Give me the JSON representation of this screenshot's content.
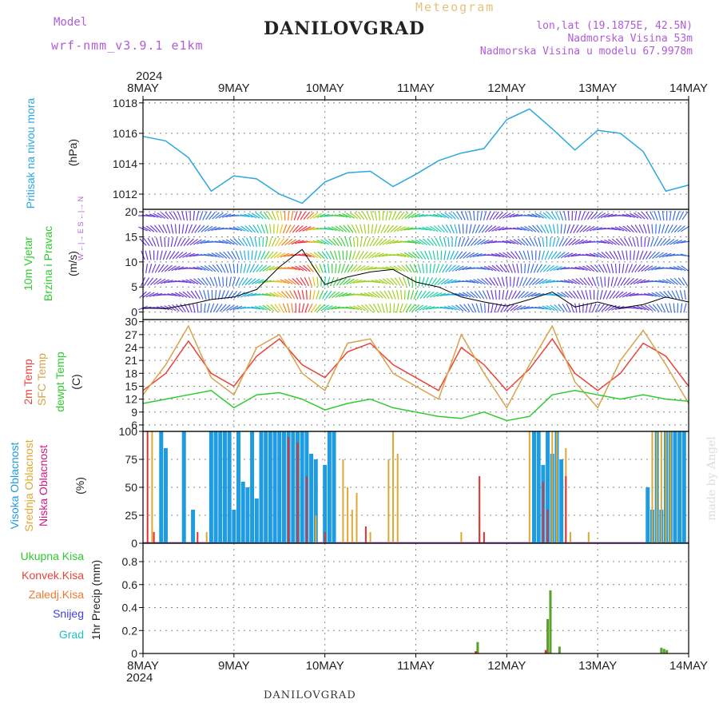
{
  "header": {
    "model_label": "Model",
    "model_name": "wrf-nmm_v3.9.1 e1km",
    "title": "DANILOVGRAD",
    "subtitle": "Meteogram",
    "lonlat": "lon,lat (19.1875E, 42.5N)",
    "elev": "Nadmorska Visina 53m",
    "elev_model": "Nadmorska Visina u modelu 67.9978m"
  },
  "footer": {
    "station": "DANILOVGRAD",
    "credit": "made by Angel"
  },
  "time_axis": {
    "year": "2024",
    "labels": [
      "8MAY",
      "9MAY",
      "10MAY",
      "11MAY",
      "12MAY",
      "13MAY",
      "14MAY"
    ]
  },
  "labels": {
    "pressure_name": "Pritisak na nivou mora",
    "pressure_unit": "(hPa)",
    "wind_name1": "10m Vjetar",
    "wind_name2": "Brzina i Pravac",
    "wind_unit": "(m/s)",
    "compass": "W ←|→ E  S ←|→ N",
    "temp2m": "2m Temp",
    "sfc": "SFC Temp",
    "dew": "dewpt Temp",
    "temp_unit": "(C)",
    "cloud_high": "Visoka Oblacnost",
    "cloud_mid": "Srednja Oblacnost",
    "cloud_low": "Niska Oblacnost",
    "cloud_unit": "(%)",
    "precip_axis": "1hr Precip (mm)",
    "precip_total": "Ukupna Kisa",
    "precip_conv": "Konvek.Kisa",
    "precip_frozen": "Zaledj.Kisa",
    "precip_snow": "Snijeg",
    "precip_hail": "Grad"
  },
  "colors": {
    "pressure": "#2aa8e0",
    "temp2m": "#e8443a",
    "sfc": "#d9a24a",
    "dew": "#2ecc2e",
    "cloud_high": "#1f9be0",
    "cloud_mid": "#e0a830",
    "cloud_low": "#e03030",
    "precip_total": "#5aa02c",
    "precip_conv": "#e03030",
    "precip_frozen": "#f07a30",
    "precip_snow": "#4040e0",
    "precip_hail": "#20c0c0",
    "violet": "#b05cd8"
  },
  "chart_data": [
    {
      "type": "line",
      "name": "pressure",
      "ylim": [
        1011,
        1018.2
      ],
      "yticks": [
        1012,
        1014,
        1016,
        1018
      ],
      "x": [
        0,
        0.25,
        0.5,
        0.75,
        1,
        1.25,
        1.5,
        1.75,
        2,
        2.25,
        2.5,
        2.75,
        3,
        3.25,
        3.5,
        3.75,
        4,
        4.25,
        4.5,
        4.75,
        5,
        5.25,
        5.5,
        5.75,
        6
      ],
      "values": [
        1015.8,
        1015.5,
        1014.4,
        1012.2,
        1013.2,
        1013.0,
        1012.0,
        1011.4,
        1012.8,
        1013.4,
        1013.5,
        1012.5,
        1013.3,
        1014.2,
        1014.7,
        1015.0,
        1016.9,
        1017.6,
        1016.3,
        1014.9,
        1016.2,
        1016.0,
        1014.8,
        1012.2,
        1012.6
      ]
    },
    {
      "type": "line",
      "name": "wind_speed",
      "ylim": [
        -1.5,
        20.5
      ],
      "yticks": [
        0,
        5,
        10,
        15,
        20
      ],
      "x": [
        0,
        0.25,
        0.5,
        0.75,
        1,
        1.25,
        1.5,
        1.75,
        2,
        2.25,
        2.5,
        2.75,
        3,
        3.25,
        3.5,
        3.75,
        4,
        4.25,
        4.5,
        4.75,
        5,
        5.25,
        5.5,
        5.75,
        6
      ],
      "values": [
        0.8,
        0.7,
        1.5,
        2.5,
        3.0,
        4.5,
        9.0,
        12.5,
        5.5,
        7.0,
        8.0,
        8.5,
        6.0,
        5.0,
        3.0,
        2.0,
        1.2,
        2.5,
        4.0,
        1.0,
        2.0,
        0.8,
        1.5,
        3.0,
        2.0
      ]
    },
    {
      "type": "line",
      "name": "temperature",
      "ylim": [
        4.5,
        30.5
      ],
      "yticks": [
        6,
        9,
        12,
        15,
        18,
        21,
        24,
        27,
        30
      ],
      "series": [
        {
          "name": "2m Temp",
          "x": [
            0,
            0.25,
            0.5,
            0.75,
            1,
            1.25,
            1.5,
            1.75,
            2,
            2.25,
            2.5,
            2.75,
            3,
            3.25,
            3.5,
            3.75,
            4,
            4.25,
            4.5,
            4.75,
            5,
            5.25,
            5.5,
            5.75,
            6
          ],
          "values": [
            14,
            18,
            25.5,
            18,
            15,
            22,
            26,
            20,
            17,
            23,
            25,
            20,
            17,
            14,
            24,
            20,
            14,
            19,
            26,
            18,
            14,
            18,
            25,
            22,
            15
          ]
        },
        {
          "name": "SFC Temp",
          "x": [
            0,
            0.25,
            0.5,
            0.75,
            1,
            1.25,
            1.5,
            1.75,
            2,
            2.25,
            2.5,
            2.75,
            3,
            3.25,
            3.5,
            3.75,
            4,
            4.25,
            4.5,
            4.75,
            5,
            5.25,
            5.5,
            5.75,
            6
          ],
          "values": [
            13,
            20,
            29,
            17,
            13,
            24,
            27,
            18,
            14,
            25,
            26,
            18,
            15,
            12,
            27,
            18,
            10,
            20,
            29,
            16,
            10,
            21,
            28,
            20,
            11
          ]
        },
        {
          "name": "dewpt Temp",
          "x": [
            0,
            0.25,
            0.5,
            0.75,
            1,
            1.25,
            1.5,
            1.75,
            2,
            2.25,
            2.5,
            2.75,
            3,
            3.25,
            3.5,
            3.75,
            4,
            4.25,
            4.5,
            4.75,
            5,
            5.25,
            5.5,
            5.75,
            6
          ],
          "values": [
            11,
            12,
            13,
            14,
            10,
            13,
            13.5,
            12,
            9.5,
            11,
            12,
            10,
            9,
            8,
            7.5,
            9,
            7,
            8,
            13,
            14,
            13,
            12,
            13,
            12,
            11.5
          ]
        }
      ]
    },
    {
      "type": "bar",
      "name": "cloud",
      "ylim": [
        0,
        100
      ],
      "yticks": [
        0,
        25,
        50,
        75,
        100
      ],
      "series": [
        {
          "name": "Visoka Oblacnost",
          "x": [
            0.2,
            0.25,
            0.45,
            0.55,
            0.75,
            0.8,
            0.85,
            0.9,
            0.95,
            1,
            1.05,
            1.1,
            1.15,
            1.2,
            1.25,
            1.3,
            1.35,
            1.4,
            1.45,
            1.5,
            1.55,
            1.6,
            1.65,
            1.7,
            1.75,
            1.8,
            1.85,
            1.9,
            2,
            2.05,
            2.1,
            4.3,
            4.35,
            4.4,
            4.45,
            4.5,
            4.55,
            4.6,
            5.55,
            5.6,
            5.65,
            5.7,
            5.75,
            5.8,
            5.85,
            5.9,
            5.95
          ],
          "values": [
            100,
            85,
            100,
            30,
            100,
            100,
            100,
            100,
            100,
            30,
            100,
            55,
            50,
            100,
            40,
            100,
            100,
            100,
            100,
            100,
            100,
            100,
            100,
            100,
            100,
            100,
            80,
            75,
            70,
            100,
            100,
            100,
            100,
            70,
            100,
            80,
            100,
            75,
            50,
            30,
            100,
            30,
            100,
            100,
            100,
            100,
            100
          ]
        },
        {
          "name": "Srednja Oblacnost",
          "x": [
            0.1,
            0.7,
            1.9,
            2.2,
            2.25,
            2.3,
            2.35,
            2.5,
            2.7,
            2.75,
            2.8,
            3.5,
            3.7,
            4.25,
            4.5,
            4.55,
            4.65,
            4.7,
            4.9,
            5.6,
            5.65,
            5.7,
            5.75,
            5.8
          ],
          "values": [
            100,
            10,
            25,
            75,
            50,
            30,
            45,
            10,
            75,
            100,
            80,
            10,
            25,
            100,
            100,
            100,
            85,
            10,
            10,
            100,
            100,
            100,
            100,
            100
          ]
        },
        {
          "name": "Niska Oblacnost",
          "x": [
            0.05,
            0.12,
            0.6,
            1.6,
            1.7,
            1.8,
            2.0,
            2.45,
            3.7,
            3.75,
            4.4,
            4.45,
            4.65
          ],
          "values": [
            100,
            10,
            10,
            95,
            90,
            60,
            10,
            15,
            60,
            10,
            55,
            30,
            60
          ]
        }
      ]
    },
    {
      "type": "bar",
      "name": "precip",
      "ylim": [
        0,
        0.96
      ],
      "yticks": [
        0,
        0.2,
        0.4,
        0.6,
        0.8
      ],
      "series": [
        {
          "name": "Ukupna Kisa",
          "x": [
            3.68,
            4.45,
            4.48,
            4.58,
            5.7,
            5.73,
            5.76
          ],
          "values": [
            0.1,
            0.3,
            0.55,
            0.06,
            0.05,
            0.04,
            0.03
          ]
        },
        {
          "name": "Konvek.Kisa",
          "x": [
            3.66,
            4.43
          ],
          "values": [
            0.02,
            0.03
          ]
        }
      ]
    }
  ]
}
